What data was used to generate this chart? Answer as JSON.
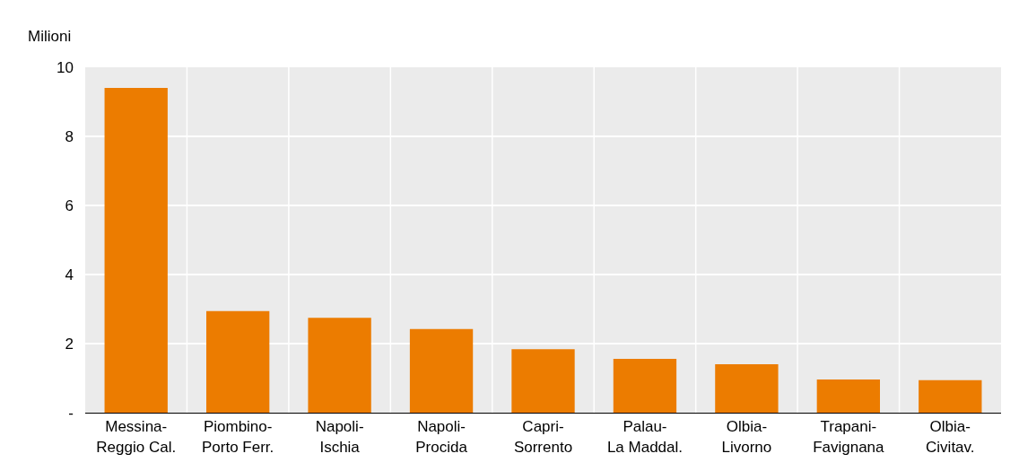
{
  "chart_data": {
    "type": "bar",
    "ylabel": "Milioni",
    "categories": [
      "Messina-\nReggio Cal.",
      "Piombino-\nPorto Ferr.",
      "Napoli-\nIschia",
      "Napoli-\nProcida",
      "Capri-\nSorrento",
      "Palau-\nLa Maddal.",
      "Olbia-\nLivorno",
      "Trapani-\nFavignana",
      "Olbia-\nCivitav."
    ],
    "values": [
      9.4,
      2.94,
      2.75,
      2.42,
      1.84,
      1.56,
      1.4,
      0.96,
      0.94
    ],
    "color": "#ec7c00",
    "ylim": [
      0,
      10
    ],
    "yticks": [
      {
        "value": 0,
        "label": "-"
      },
      2,
      4,
      6,
      8,
      10
    ],
    "grid": true
  }
}
